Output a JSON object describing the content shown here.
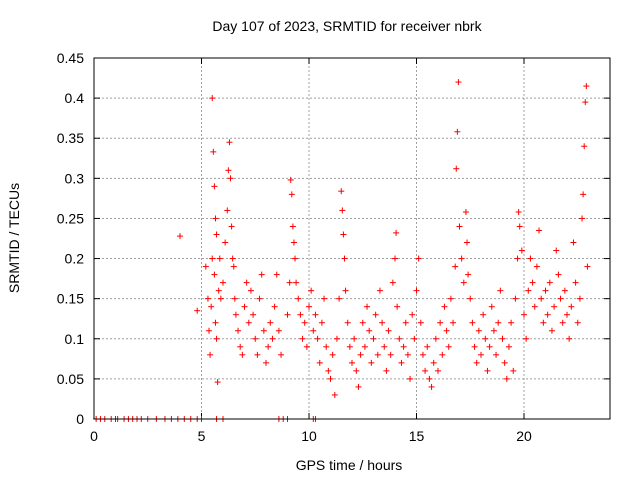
{
  "chart_data": {
    "type": "scatter",
    "title": "Day 107 of 2023, SRMTID for receiver nbrk",
    "xlabel": "GPS time / hours",
    "ylabel": "SRMTID / TECUs",
    "xlim": [
      0,
      24
    ],
    "ylim": [
      0,
      0.45
    ],
    "xticks": [
      0,
      5,
      10,
      15,
      20
    ],
    "xtick_labels": [
      "0",
      "5",
      "10",
      "15",
      "20"
    ],
    "yticks": [
      0,
      0.05,
      0.1,
      0.15,
      0.2,
      0.25,
      0.3,
      0.35,
      0.4,
      0.45
    ],
    "ytick_labels": [
      "0",
      "0.05",
      "0.1",
      "0.15",
      "0.2",
      "0.25",
      "0.3",
      "0.35",
      "0.4",
      "0.45"
    ],
    "grid": true,
    "marker": "+",
    "color": "#ff0000",
    "series": [
      {
        "name": "SRMTID",
        "points": [
          [
            0.1,
            0
          ],
          [
            0.3,
            0
          ],
          [
            0.5,
            0
          ],
          [
            0.8,
            0
          ],
          [
            1.0,
            0
          ],
          [
            1.1,
            0
          ],
          [
            1.4,
            0
          ],
          [
            1.6,
            0
          ],
          [
            1.8,
            0
          ],
          [
            2.0,
            0
          ],
          [
            2.2,
            0
          ],
          [
            2.5,
            0
          ],
          [
            2.9,
            0
          ],
          [
            3.3,
            0
          ],
          [
            3.6,
            0
          ],
          [
            3.9,
            0
          ],
          [
            4.2,
            0
          ],
          [
            4.5,
            0
          ],
          [
            4.8,
            0
          ],
          [
            5.0,
            0
          ],
          [
            5.7,
            0
          ],
          [
            6.0,
            0
          ],
          [
            8.6,
            0
          ],
          [
            8.8,
            0
          ],
          [
            9.0,
            0
          ],
          [
            10.2,
            0
          ],
          [
            10.3,
            0
          ],
          [
            4.0,
            0.228
          ],
          [
            4.8,
            0.135
          ],
          [
            5.2,
            0.19
          ],
          [
            5.3,
            0.15
          ],
          [
            5.35,
            0.11
          ],
          [
            5.4,
            0.08
          ],
          [
            5.45,
            0.14
          ],
          [
            5.5,
            0.2
          ],
          [
            5.55,
            0.333
          ],
          [
            5.5,
            0.4
          ],
          [
            5.6,
            0.29
          ],
          [
            5.65,
            0.25
          ],
          [
            5.7,
            0.23
          ],
          [
            5.6,
            0.18
          ],
          [
            5.65,
            0.12
          ],
          [
            5.7,
            0.1
          ],
          [
            5.75,
            0.046
          ],
          [
            5.8,
            0.16
          ],
          [
            5.85,
            0.2
          ],
          [
            5.9,
            0.15
          ],
          [
            6.0,
            0.17
          ],
          [
            6.1,
            0.22
          ],
          [
            6.2,
            0.26
          ],
          [
            6.25,
            0.31
          ],
          [
            6.3,
            0.345
          ],
          [
            6.35,
            0.3
          ],
          [
            6.4,
            0.24
          ],
          [
            6.45,
            0.2
          ],
          [
            6.5,
            0.19
          ],
          [
            6.55,
            0.15
          ],
          [
            6.6,
            0.13
          ],
          [
            6.7,
            0.11
          ],
          [
            6.8,
            0.09
          ],
          [
            6.9,
            0.08
          ],
          [
            7.0,
            0.14
          ],
          [
            7.1,
            0.17
          ],
          [
            7.2,
            0.12
          ],
          [
            7.3,
            0.16
          ],
          [
            7.4,
            0.13
          ],
          [
            7.5,
            0.1
          ],
          [
            7.6,
            0.08
          ],
          [
            7.7,
            0.15
          ],
          [
            7.8,
            0.18
          ],
          [
            7.9,
            0.11
          ],
          [
            8.0,
            0.07
          ],
          [
            8.1,
            0.09
          ],
          [
            8.2,
            0.12
          ],
          [
            8.3,
            0.1
          ],
          [
            8.4,
            0.14
          ],
          [
            8.5,
            0.18
          ],
          [
            8.6,
            0.11
          ],
          [
            8.7,
            0.08
          ],
          [
            9.0,
            0.13
          ],
          [
            9.1,
            0.17
          ],
          [
            9.15,
            0.298
          ],
          [
            9.2,
            0.28
          ],
          [
            9.25,
            0.24
          ],
          [
            9.3,
            0.22
          ],
          [
            9.35,
            0.2
          ],
          [
            9.4,
            0.17
          ],
          [
            9.5,
            0.15
          ],
          [
            9.6,
            0.13
          ],
          [
            9.7,
            0.1
          ],
          [
            9.8,
            0.12
          ],
          [
            9.9,
            0.09
          ],
          [
            10.0,
            0.14
          ],
          [
            10.1,
            0.16
          ],
          [
            10.2,
            0.11
          ],
          [
            10.3,
            0.13
          ],
          [
            10.4,
            0.1
          ],
          [
            10.5,
            0.07
          ],
          [
            10.6,
            0.12
          ],
          [
            10.7,
            0.15
          ],
          [
            10.8,
            0.09
          ],
          [
            10.9,
            0.06
          ],
          [
            11.0,
            0.05
          ],
          [
            11.1,
            0.08
          ],
          [
            11.2,
            0.03
          ],
          [
            11.3,
            0.1
          ],
          [
            11.4,
            0.15
          ],
          [
            11.5,
            0.284
          ],
          [
            11.55,
            0.26
          ],
          [
            11.6,
            0.23
          ],
          [
            11.65,
            0.2
          ],
          [
            11.7,
            0.16
          ],
          [
            11.8,
            0.12
          ],
          [
            11.9,
            0.09
          ],
          [
            12.0,
            0.07
          ],
          [
            12.1,
            0.1
          ],
          [
            12.2,
            0.06
          ],
          [
            12.3,
            0.04
          ],
          [
            12.4,
            0.08
          ],
          [
            12.5,
            0.12
          ],
          [
            12.6,
            0.09
          ],
          [
            12.7,
            0.14
          ],
          [
            12.8,
            0.11
          ],
          [
            12.9,
            0.07
          ],
          [
            13.0,
            0.1
          ],
          [
            13.1,
            0.13
          ],
          [
            13.2,
            0.08
          ],
          [
            13.3,
            0.16
          ],
          [
            13.4,
            0.12
          ],
          [
            13.5,
            0.09
          ],
          [
            13.6,
            0.06
          ],
          [
            13.7,
            0.11
          ],
          [
            13.8,
            0.08
          ],
          [
            13.9,
            0.17
          ],
          [
            14.0,
            0.2
          ],
          [
            14.05,
            0.232
          ],
          [
            14.1,
            0.14
          ],
          [
            14.2,
            0.1
          ],
          [
            14.3,
            0.07
          ],
          [
            14.4,
            0.09
          ],
          [
            14.5,
            0.12
          ],
          [
            14.6,
            0.08
          ],
          [
            14.7,
            0.05
          ],
          [
            14.8,
            0.13
          ],
          [
            14.9,
            0.1
          ],
          [
            15.0,
            0.16
          ],
          [
            15.1,
            0.2
          ],
          [
            15.2,
            0.12
          ],
          [
            15.3,
            0.08
          ],
          [
            15.4,
            0.06
          ],
          [
            15.5,
            0.09
          ],
          [
            15.6,
            0.05
          ],
          [
            15.7,
            0.04
          ],
          [
            15.8,
            0.07
          ],
          [
            15.9,
            0.1
          ],
          [
            16.0,
            0.06
          ],
          [
            16.1,
            0.12
          ],
          [
            16.2,
            0.08
          ],
          [
            16.3,
            0.14
          ],
          [
            16.4,
            0.11
          ],
          [
            16.5,
            0.09
          ],
          [
            16.6,
            0.15
          ],
          [
            16.7,
            0.12
          ],
          [
            16.8,
            0.19
          ],
          [
            16.85,
            0.312
          ],
          [
            16.9,
            0.358
          ],
          [
            16.95,
            0.42
          ],
          [
            17.0,
            0.24
          ],
          [
            17.1,
            0.2
          ],
          [
            17.2,
            0.17
          ],
          [
            17.3,
            0.258
          ],
          [
            17.35,
            0.22
          ],
          [
            17.4,
            0.18
          ],
          [
            17.5,
            0.15
          ],
          [
            17.6,
            0.12
          ],
          [
            17.7,
            0.09
          ],
          [
            17.8,
            0.07
          ],
          [
            17.9,
            0.11
          ],
          [
            18.0,
            0.08
          ],
          [
            18.1,
            0.13
          ],
          [
            18.2,
            0.1
          ],
          [
            18.3,
            0.06
          ],
          [
            18.4,
            0.09
          ],
          [
            18.5,
            0.14
          ],
          [
            18.6,
            0.11
          ],
          [
            18.7,
            0.08
          ],
          [
            18.8,
            0.12
          ],
          [
            18.9,
            0.16
          ],
          [
            19.0,
            0.1
          ],
          [
            19.1,
            0.07
          ],
          [
            19.2,
            0.05
          ],
          [
            19.3,
            0.09
          ],
          [
            19.4,
            0.12
          ],
          [
            19.5,
            0.06
          ],
          [
            19.6,
            0.15
          ],
          [
            19.7,
            0.2
          ],
          [
            19.75,
            0.258
          ],
          [
            19.8,
            0.24
          ],
          [
            19.9,
            0.21
          ],
          [
            20.0,
            0.13
          ],
          [
            20.1,
            0.1
          ],
          [
            20.2,
            0.16
          ],
          [
            20.3,
            0.2
          ],
          [
            20.4,
            0.17
          ],
          [
            20.5,
            0.14
          ],
          [
            20.6,
            0.19
          ],
          [
            20.7,
            0.235
          ],
          [
            20.8,
            0.15
          ],
          [
            20.9,
            0.12
          ],
          [
            21.0,
            0.16
          ],
          [
            21.1,
            0.13
          ],
          [
            21.2,
            0.17
          ],
          [
            21.3,
            0.11
          ],
          [
            21.4,
            0.14
          ],
          [
            21.5,
            0.21
          ],
          [
            21.6,
            0.18
          ],
          [
            21.7,
            0.15
          ],
          [
            21.8,
            0.12
          ],
          [
            21.9,
            0.16
          ],
          [
            22.0,
            0.13
          ],
          [
            22.1,
            0.1
          ],
          [
            22.2,
            0.14
          ],
          [
            22.3,
            0.22
          ],
          [
            22.4,
            0.17
          ],
          [
            22.5,
            0.12
          ],
          [
            22.6,
            0.15
          ],
          [
            22.7,
            0.25
          ],
          [
            22.75,
            0.28
          ],
          [
            22.8,
            0.34
          ],
          [
            22.85,
            0.395
          ],
          [
            22.9,
            0.415
          ],
          [
            22.95,
            0.19
          ]
        ]
      }
    ]
  }
}
